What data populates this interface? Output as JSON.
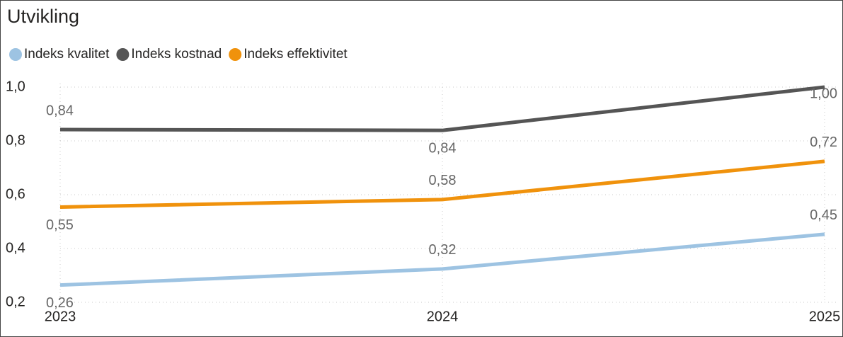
{
  "chart_data": {
    "type": "line",
    "title": "Utvikling",
    "categories": [
      "2023",
      "2024",
      "2025"
    ],
    "series": [
      {
        "name": "Indeks kvalitet",
        "color": "#9dc3e2",
        "values": [
          0.264,
          0.324,
          0.453
        ],
        "value_labels": [
          "0,26",
          "0,32",
          "0,45"
        ]
      },
      {
        "name": "Indeks kostnad",
        "color": "#555555",
        "values": [
          0.842,
          0.839,
          1.0
        ],
        "value_labels": [
          "0,84",
          "0,84",
          "1,00"
        ]
      },
      {
        "name": "Indeks effektivitet",
        "color": "#f0920c",
        "values": [
          0.554,
          0.582,
          0.724
        ],
        "value_labels": [
          "0,55",
          "0,58",
          "0,72"
        ]
      }
    ],
    "ylim": [
      0.2,
      1.0
    ],
    "yticks": [
      {
        "value": 0.2,
        "label": "0,2"
      },
      {
        "value": 0.4,
        "label": "0,4"
      },
      {
        "value": 0.6,
        "label": "0,6"
      },
      {
        "value": 0.8,
        "label": "0,8"
      },
      {
        "value": 1.0,
        "label": "1,0"
      }
    ],
    "grid": true,
    "legend": "top-left"
  }
}
